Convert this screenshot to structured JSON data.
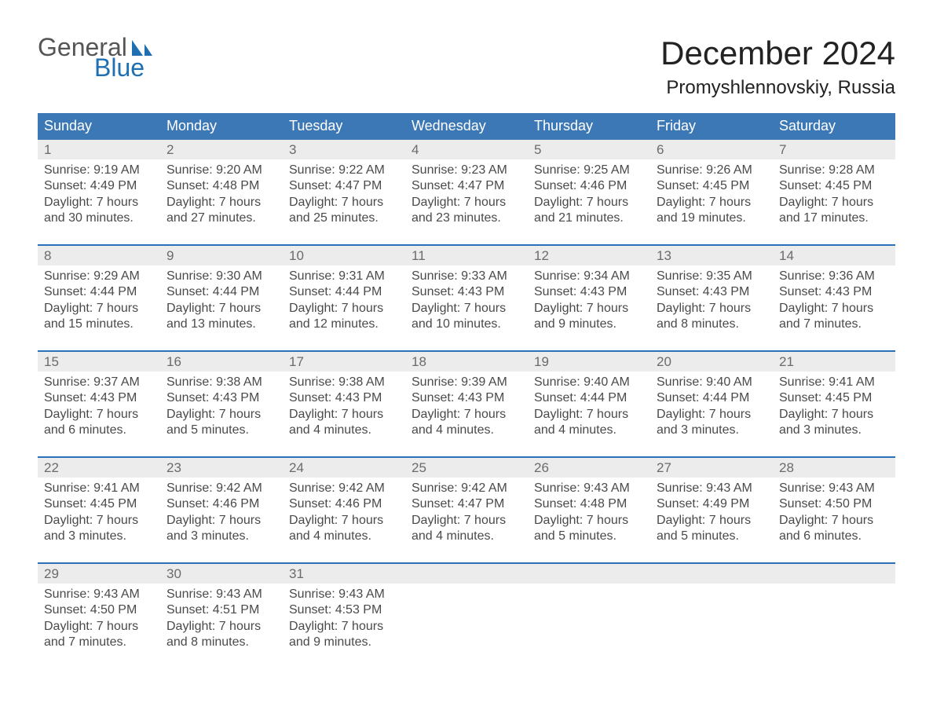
{
  "logo": {
    "word1": "General",
    "word2": "Blue"
  },
  "title": "December 2024",
  "location": "Promyshlennovskiy, Russia",
  "colors": {
    "header_blue": "#3d78b6",
    "accent_blue": "#2a71b8",
    "row_gray": "#ececec",
    "logo_blue": "#1f6fb2",
    "logo_gray": "#555555",
    "text": "#333333"
  },
  "daysOfWeek": [
    "Sunday",
    "Monday",
    "Tuesday",
    "Wednesday",
    "Thursday",
    "Friday",
    "Saturday"
  ],
  "weeks": [
    [
      {
        "n": "1",
        "sr": "9:19 AM",
        "ss": "4:49 PM",
        "dl": "7 hours and 30 minutes."
      },
      {
        "n": "2",
        "sr": "9:20 AM",
        "ss": "4:48 PM",
        "dl": "7 hours and 27 minutes."
      },
      {
        "n": "3",
        "sr": "9:22 AM",
        "ss": "4:47 PM",
        "dl": "7 hours and 25 minutes."
      },
      {
        "n": "4",
        "sr": "9:23 AM",
        "ss": "4:47 PM",
        "dl": "7 hours and 23 minutes."
      },
      {
        "n": "5",
        "sr": "9:25 AM",
        "ss": "4:46 PM",
        "dl": "7 hours and 21 minutes."
      },
      {
        "n": "6",
        "sr": "9:26 AM",
        "ss": "4:45 PM",
        "dl": "7 hours and 19 minutes."
      },
      {
        "n": "7",
        "sr": "9:28 AM",
        "ss": "4:45 PM",
        "dl": "7 hours and 17 minutes."
      }
    ],
    [
      {
        "n": "8",
        "sr": "9:29 AM",
        "ss": "4:44 PM",
        "dl": "7 hours and 15 minutes."
      },
      {
        "n": "9",
        "sr": "9:30 AM",
        "ss": "4:44 PM",
        "dl": "7 hours and 13 minutes."
      },
      {
        "n": "10",
        "sr": "9:31 AM",
        "ss": "4:44 PM",
        "dl": "7 hours and 12 minutes."
      },
      {
        "n": "11",
        "sr": "9:33 AM",
        "ss": "4:43 PM",
        "dl": "7 hours and 10 minutes."
      },
      {
        "n": "12",
        "sr": "9:34 AM",
        "ss": "4:43 PM",
        "dl": "7 hours and 9 minutes."
      },
      {
        "n": "13",
        "sr": "9:35 AM",
        "ss": "4:43 PM",
        "dl": "7 hours and 8 minutes."
      },
      {
        "n": "14",
        "sr": "9:36 AM",
        "ss": "4:43 PM",
        "dl": "7 hours and 7 minutes."
      }
    ],
    [
      {
        "n": "15",
        "sr": "9:37 AM",
        "ss": "4:43 PM",
        "dl": "7 hours and 6 minutes."
      },
      {
        "n": "16",
        "sr": "9:38 AM",
        "ss": "4:43 PM",
        "dl": "7 hours and 5 minutes."
      },
      {
        "n": "17",
        "sr": "9:38 AM",
        "ss": "4:43 PM",
        "dl": "7 hours and 4 minutes."
      },
      {
        "n": "18",
        "sr": "9:39 AM",
        "ss": "4:43 PM",
        "dl": "7 hours and 4 minutes."
      },
      {
        "n": "19",
        "sr": "9:40 AM",
        "ss": "4:44 PM",
        "dl": "7 hours and 4 minutes."
      },
      {
        "n": "20",
        "sr": "9:40 AM",
        "ss": "4:44 PM",
        "dl": "7 hours and 3 minutes."
      },
      {
        "n": "21",
        "sr": "9:41 AM",
        "ss": "4:45 PM",
        "dl": "7 hours and 3 minutes."
      }
    ],
    [
      {
        "n": "22",
        "sr": "9:41 AM",
        "ss": "4:45 PM",
        "dl": "7 hours and 3 minutes."
      },
      {
        "n": "23",
        "sr": "9:42 AM",
        "ss": "4:46 PM",
        "dl": "7 hours and 3 minutes."
      },
      {
        "n": "24",
        "sr": "9:42 AM",
        "ss": "4:46 PM",
        "dl": "7 hours and 4 minutes."
      },
      {
        "n": "25",
        "sr": "9:42 AM",
        "ss": "4:47 PM",
        "dl": "7 hours and 4 minutes."
      },
      {
        "n": "26",
        "sr": "9:43 AM",
        "ss": "4:48 PM",
        "dl": "7 hours and 5 minutes."
      },
      {
        "n": "27",
        "sr": "9:43 AM",
        "ss": "4:49 PM",
        "dl": "7 hours and 5 minutes."
      },
      {
        "n": "28",
        "sr": "9:43 AM",
        "ss": "4:50 PM",
        "dl": "7 hours and 6 minutes."
      }
    ],
    [
      {
        "n": "29",
        "sr": "9:43 AM",
        "ss": "4:50 PM",
        "dl": "7 hours and 7 minutes."
      },
      {
        "n": "30",
        "sr": "9:43 AM",
        "ss": "4:51 PM",
        "dl": "7 hours and 8 minutes."
      },
      {
        "n": "31",
        "sr": "9:43 AM",
        "ss": "4:53 PM",
        "dl": "7 hours and 9 minutes."
      },
      null,
      null,
      null,
      null
    ]
  ],
  "labels": {
    "sunrise": "Sunrise:",
    "sunset": "Sunset:",
    "daylight": "Daylight:"
  }
}
